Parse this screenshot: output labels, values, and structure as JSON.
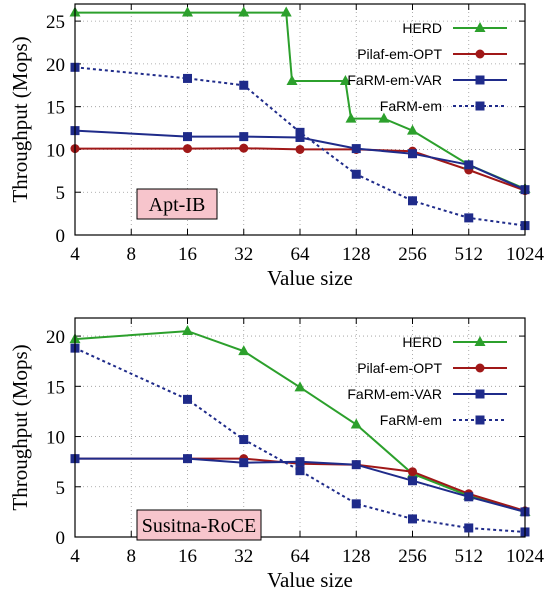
{
  "chart_data": [
    {
      "type": "line",
      "xlabel": "Value size",
      "ylabel": "Throughput (Mops)",
      "annotation": "Apt-IB",
      "x_scale": "log2",
      "x_ticks": [
        "4",
        "8",
        "16",
        "32",
        "64",
        "128",
        "256",
        "512",
        "1024"
      ],
      "y_ticks": [
        "0",
        "5",
        "10",
        "15",
        "20",
        "25"
      ],
      "xlim": [
        4,
        1024
      ],
      "ylim": [
        0,
        27
      ],
      "grid": true,
      "legend_position": "top-right",
      "colors": {
        "HERD": "#2ca02c",
        "Pilaf-em-OPT": "#a01818",
        "FaRM-em-VAR": "#1f2b8a",
        "FaRM-em": "#1f2b8a"
      },
      "series": [
        {
          "name": "HERD",
          "line": "solid",
          "marker": "triangle",
          "points": [
            [
              4,
              26.0
            ],
            [
              16,
              26.0
            ],
            [
              32,
              26.0
            ],
            [
              54,
              26.0
            ],
            [
              58,
              18.0
            ],
            [
              112,
              18.0
            ],
            [
              120,
              13.6
            ],
            [
              180,
              13.6
            ],
            [
              256,
              12.2
            ],
            [
              512,
              8.2
            ],
            [
              1024,
              5.4
            ]
          ]
        },
        {
          "name": "Pilaf-em-OPT",
          "line": "solid",
          "marker": "circle",
          "points": [
            [
              4,
              10.1
            ],
            [
              16,
              10.1
            ],
            [
              32,
              10.15
            ],
            [
              64,
              10.0
            ],
            [
              128,
              10.0
            ],
            [
              256,
              9.8
            ],
            [
              512,
              7.6
            ],
            [
              1024,
              5.2
            ]
          ]
        },
        {
          "name": "FaRM-em-VAR",
          "line": "solid",
          "marker": "square",
          "points": [
            [
              4,
              12.2
            ],
            [
              16,
              11.5
            ],
            [
              32,
              11.5
            ],
            [
              64,
              11.4
            ],
            [
              128,
              10.1
            ],
            [
              256,
              9.5
            ],
            [
              512,
              8.2
            ],
            [
              1024,
              5.3
            ]
          ]
        },
        {
          "name": "FaRM-em",
          "line": "dotted",
          "marker": "square",
          "points": [
            [
              4,
              19.6
            ],
            [
              16,
              18.3
            ],
            [
              32,
              17.5
            ],
            [
              64,
              12.0
            ],
            [
              128,
              7.1
            ],
            [
              256,
              4.0
            ],
            [
              512,
              2.0
            ],
            [
              1024,
              1.1
            ]
          ]
        }
      ]
    },
    {
      "type": "line",
      "xlabel": "Value size",
      "ylabel": "Throughput (Mops)",
      "annotation": "Susitna-RoCE",
      "x_scale": "log2",
      "x_ticks": [
        "4",
        "8",
        "16",
        "32",
        "64",
        "128",
        "256",
        "512",
        "1024"
      ],
      "y_ticks": [
        "0",
        "5",
        "10",
        "15",
        "20"
      ],
      "xlim": [
        4,
        1024
      ],
      "ylim": [
        0,
        21.8
      ],
      "grid": true,
      "legend_position": "top-right",
      "colors": {
        "HERD": "#2ca02c",
        "Pilaf-em-OPT": "#a01818",
        "FaRM-em-VAR": "#1f2b8a",
        "FaRM-em": "#1f2b8a"
      },
      "series": [
        {
          "name": "HERD",
          "line": "solid",
          "marker": "triangle",
          "points": [
            [
              4,
              19.7
            ],
            [
              16,
              20.5
            ],
            [
              32,
              18.5
            ],
            [
              64,
              14.9
            ],
            [
              128,
              11.2
            ],
            [
              256,
              6.3
            ],
            [
              512,
              4.1
            ],
            [
              1024,
              2.5
            ]
          ]
        },
        {
          "name": "Pilaf-em-OPT",
          "line": "solid",
          "marker": "circle",
          "points": [
            [
              4,
              7.8
            ],
            [
              16,
              7.8
            ],
            [
              32,
              7.8
            ],
            [
              64,
              7.3
            ],
            [
              128,
              7.2
            ],
            [
              256,
              6.5
            ],
            [
              512,
              4.3
            ],
            [
              1024,
              2.6
            ]
          ]
        },
        {
          "name": "FaRM-em-VAR",
          "line": "solid",
          "marker": "square",
          "points": [
            [
              4,
              7.8
            ],
            [
              16,
              7.8
            ],
            [
              32,
              7.4
            ],
            [
              64,
              7.5
            ],
            [
              128,
              7.2
            ],
            [
              256,
              5.6
            ],
            [
              512,
              4.0
            ],
            [
              1024,
              2.5
            ]
          ]
        },
        {
          "name": "FaRM-em",
          "line": "dotted",
          "marker": "square",
          "points": [
            [
              4,
              18.8
            ],
            [
              16,
              13.7
            ],
            [
              32,
              9.7
            ],
            [
              64,
              6.6
            ],
            [
              128,
              3.3
            ],
            [
              256,
              1.8
            ],
            [
              512,
              0.9
            ],
            [
              1024,
              0.5
            ]
          ]
        }
      ]
    }
  ]
}
